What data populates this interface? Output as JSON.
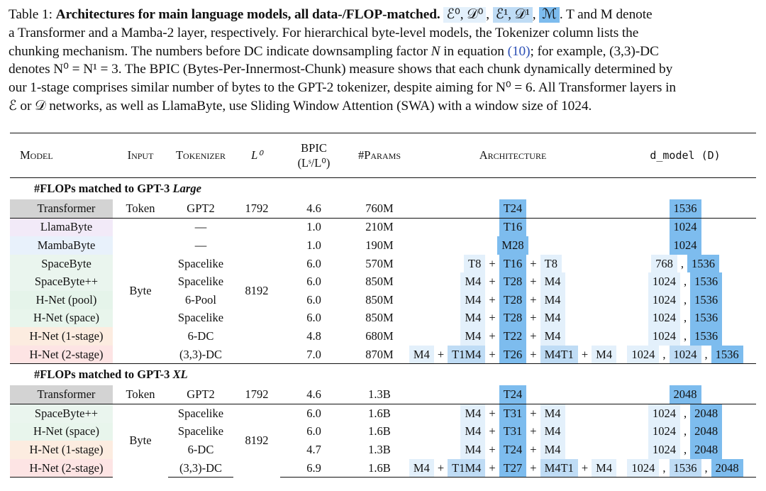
{
  "caption": {
    "label": "Table 1:",
    "title": "Architectures for main language models, all data-/FLOP-matched.",
    "chip0": "ℰ⁰, 𝒟⁰",
    "chip1": "ℰ¹, 𝒟¹",
    "chip2": "ℳ",
    "line1_tail": ". T and M denote",
    "line2": "a Transformer and a Mamba-2 layer, respectively. For hierarchical byte-level models, the Tokenizer column lists the",
    "line3a": "chunking mechanism. The numbers before DC indicate downsampling factor ",
    "line3b": " in equation ",
    "line3ref": "(10)",
    "line3c": "; for example, (3,3)-DC",
    "line4": "denotes N⁰ = N¹ = 3. The BPIC (Bytes-Per-Innermost-Chunk) measure shows that each chunk dynamically determined by",
    "line5": "our 1-stage comprises similar number of bytes to the GPT-2 tokenizer, despite aiming for N⁰ = 6. All Transformer layers in",
    "line6": "ℰ or 𝒟 networks, as well as LlamaByte, use Sliding Window Attention (SWA) with a window size of 1024."
  },
  "colors": {
    "light_blue": "#e3f0fb",
    "mid_blue": "#bfdcf5",
    "dark_blue": "#7dbcee",
    "transformer_gray": "#d3d3d3",
    "llamabyte_lavender": "#f2eaf8",
    "mambabyte_blue": "#e8f1fb",
    "spacebyte_green": "#eaf5ee",
    "hnet_pool_green": "#e5f4ea",
    "hnet_space_green": "#e8f5ec",
    "hnet_1stage_peach": "#fcece0",
    "hnet_2stage_pink": "#fde4e4"
  },
  "header": {
    "model": "Model",
    "input": "Input",
    "tokenizer": "Tokenizer",
    "l0": "L⁰",
    "bpic1": "BPIC",
    "bpic2": "(Lˢ/L⁰)",
    "params": "#Params",
    "architecture": "Architecture",
    "dmodel": "d_model (D)"
  },
  "sections": [
    {
      "title": "#FLOPs matched to GPT-3 ",
      "title_em": "Large"
    },
    {
      "title": "#FLOPs matched to GPT-3 ",
      "title_em": "XL"
    }
  ],
  "shared": {
    "token": "Token",
    "byte": "Byte",
    "gpt2": "GPT2",
    "l0_token": "1792",
    "l0_byte": "8192"
  },
  "large_rows": [
    {
      "model": "Transformer",
      "tokenizer": "GPT2",
      "bpic": "4.6",
      "params": "760M"
    },
    {
      "model": "LlamaByte",
      "tokenizer": "—",
      "bpic": "1.0",
      "params": "210M"
    },
    {
      "model": "MambaByte",
      "tokenizer": "—",
      "bpic": "1.0",
      "params": "190M"
    },
    {
      "model": "SpaceByte",
      "tokenizer": "Spacelike",
      "bpic": "6.0",
      "params": "570M"
    },
    {
      "model": "SpaceByte++",
      "tokenizer": "Spacelike",
      "bpic": "6.0",
      "params": "850M"
    },
    {
      "model": "H-Net (pool)",
      "tokenizer": "6-Pool",
      "bpic": "6.0",
      "params": "850M"
    },
    {
      "model": "H-Net (space)",
      "tokenizer": "Spacelike",
      "bpic": "6.0",
      "params": "850M"
    },
    {
      "model": "H-Net (1-stage)",
      "tokenizer": "6-DC",
      "bpic": "4.8",
      "params": "680M"
    },
    {
      "model": "H-Net (2-stage)",
      "tokenizer": "(3,3)-DC",
      "bpic": "7.0",
      "params": "870M"
    }
  ],
  "xl_rows": [
    {
      "model": "Transformer",
      "tokenizer": "GPT2",
      "bpic": "4.6",
      "params": "1.3B"
    },
    {
      "model": "SpaceByte++",
      "tokenizer": "Spacelike",
      "bpic": "6.0",
      "params": "1.6B"
    },
    {
      "model": "H-Net (space)",
      "tokenizer": "Spacelike",
      "bpic": "6.0",
      "params": "1.6B"
    },
    {
      "model": "H-Net (1-stage)",
      "tokenizer": "6-DC",
      "bpic": "4.7",
      "params": "1.3B"
    },
    {
      "model": "H-Net (2-stage)",
      "tokenizer": "(3,3)-DC",
      "bpic": "6.9",
      "params": "1.6B"
    }
  ],
  "arch": {
    "plus": "+",
    "comma": ",",
    "large": [
      [
        "T24"
      ],
      [
        "T16"
      ],
      [
        "M28"
      ],
      [
        "T8",
        "T16",
        "T8"
      ],
      [
        "M4",
        "T28",
        "M4"
      ],
      [
        "M4",
        "T28",
        "M4"
      ],
      [
        "M4",
        "T28",
        "M4"
      ],
      [
        "M4",
        "T22",
        "M4"
      ],
      [
        "M4",
        "T1M4",
        "T26",
        "M4T1",
        "M4"
      ]
    ],
    "xl": [
      [
        "T24"
      ],
      [
        "M4",
        "T31",
        "M4"
      ],
      [
        "M4",
        "T31",
        "M4"
      ],
      [
        "M4",
        "T24",
        "M4"
      ],
      [
        "M4",
        "T1M4",
        "T27",
        "M4T1",
        "M4"
      ]
    ]
  },
  "dmodel": {
    "large": [
      [
        "1536"
      ],
      [
        "1024"
      ],
      [
        "1024"
      ],
      [
        "768",
        "1536"
      ],
      [
        "1024",
        "1536"
      ],
      [
        "1024",
        "1536"
      ],
      [
        "1024",
        "1536"
      ],
      [
        "1024",
        "1536"
      ],
      [
        "1024",
        "1024",
        "1536"
      ]
    ],
    "xl": [
      [
        "2048"
      ],
      [
        "1024",
        "2048"
      ],
      [
        "1024",
        "2048"
      ],
      [
        "1024",
        "2048"
      ],
      [
        "1024",
        "1536",
        "2048"
      ]
    ]
  }
}
